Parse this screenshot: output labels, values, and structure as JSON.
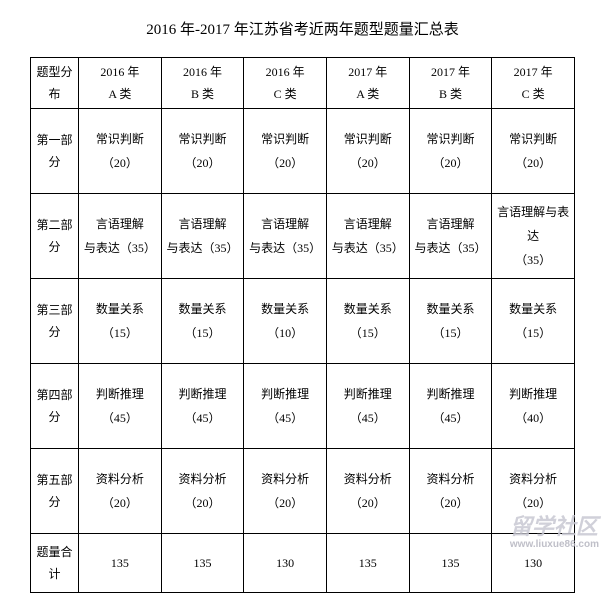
{
  "title": "2016 年-2017 年江苏省考近两年题型题量汇总表",
  "columns": [
    {
      "line1": "题型分",
      "line2": "布"
    },
    {
      "line1": "2016 年",
      "line2": "A 类"
    },
    {
      "line1": "2016 年",
      "line2": "B 类"
    },
    {
      "line1": "2016 年",
      "line2": "C 类"
    },
    {
      "line1": "2017 年",
      "line2": "A 类"
    },
    {
      "line1": "2017 年",
      "line2": "B 类"
    },
    {
      "line1": "2017 年",
      "line2": "C 类"
    }
  ],
  "sections": [
    {
      "label_l1": "第一部",
      "label_l2": "分",
      "cells": [
        {
          "l1": "常识判断",
          "l2": "（20）"
        },
        {
          "l1": "常识判断",
          "l2": "（20）"
        },
        {
          "l1": "常识判断",
          "l2": "（20）"
        },
        {
          "l1": "常识判断",
          "l2": "（20）"
        },
        {
          "l1": "常识判断",
          "l2": "（20）"
        },
        {
          "l1": "常识判断",
          "l2": "（20）"
        }
      ]
    },
    {
      "label_l1": "第二部",
      "label_l2": "分",
      "cells": [
        {
          "l1": "言语理解",
          "l2": "与表达（35）"
        },
        {
          "l1": "言语理解",
          "l2": "与表达（35）"
        },
        {
          "l1": "言语理解",
          "l2": "与表达（35）"
        },
        {
          "l1": "言语理解",
          "l2": "与表达（35）"
        },
        {
          "l1": "言语理解",
          "l2": "与表达（35）"
        },
        {
          "l1": "言语理解与表达",
          "l2": "（35）"
        }
      ]
    },
    {
      "label_l1": "第三部",
      "label_l2": "分",
      "cells": [
        {
          "l1": "数量关系",
          "l2": "（15）"
        },
        {
          "l1": "数量关系",
          "l2": "（15）"
        },
        {
          "l1": "数量关系",
          "l2": "（10）"
        },
        {
          "l1": "数量关系",
          "l2": "（15）"
        },
        {
          "l1": "数量关系",
          "l2": "（15）"
        },
        {
          "l1": "数量关系",
          "l2": "（15）"
        }
      ]
    },
    {
      "label_l1": "第四部",
      "label_l2": "分",
      "cells": [
        {
          "l1": "判断推理",
          "l2": "（45）"
        },
        {
          "l1": "判断推理",
          "l2": "（45）"
        },
        {
          "l1": "判断推理",
          "l2": "（45）"
        },
        {
          "l1": "判断推理",
          "l2": "（45）"
        },
        {
          "l1": "判断推理",
          "l2": "（45）"
        },
        {
          "l1": "判断推理",
          "l2": "（40）"
        }
      ]
    },
    {
      "label_l1": "第五部",
      "label_l2": "分",
      "cells": [
        {
          "l1": "资料分析",
          "l2": "（20）"
        },
        {
          "l1": "资料分析",
          "l2": "（20）"
        },
        {
          "l1": "资料分析",
          "l2": "（20）"
        },
        {
          "l1": "资料分析",
          "l2": "（20）"
        },
        {
          "l1": "资料分析",
          "l2": "（20）"
        },
        {
          "l1": "资料分析",
          "l2": "（20）"
        }
      ]
    }
  ],
  "totals": {
    "label_l1": "题量合",
    "label_l2": "计",
    "values": [
      "135",
      "135",
      "130",
      "135",
      "135",
      "130"
    ]
  },
  "watermark": {
    "main": "留学社区",
    "sub": "www.liuxue86.com"
  }
}
